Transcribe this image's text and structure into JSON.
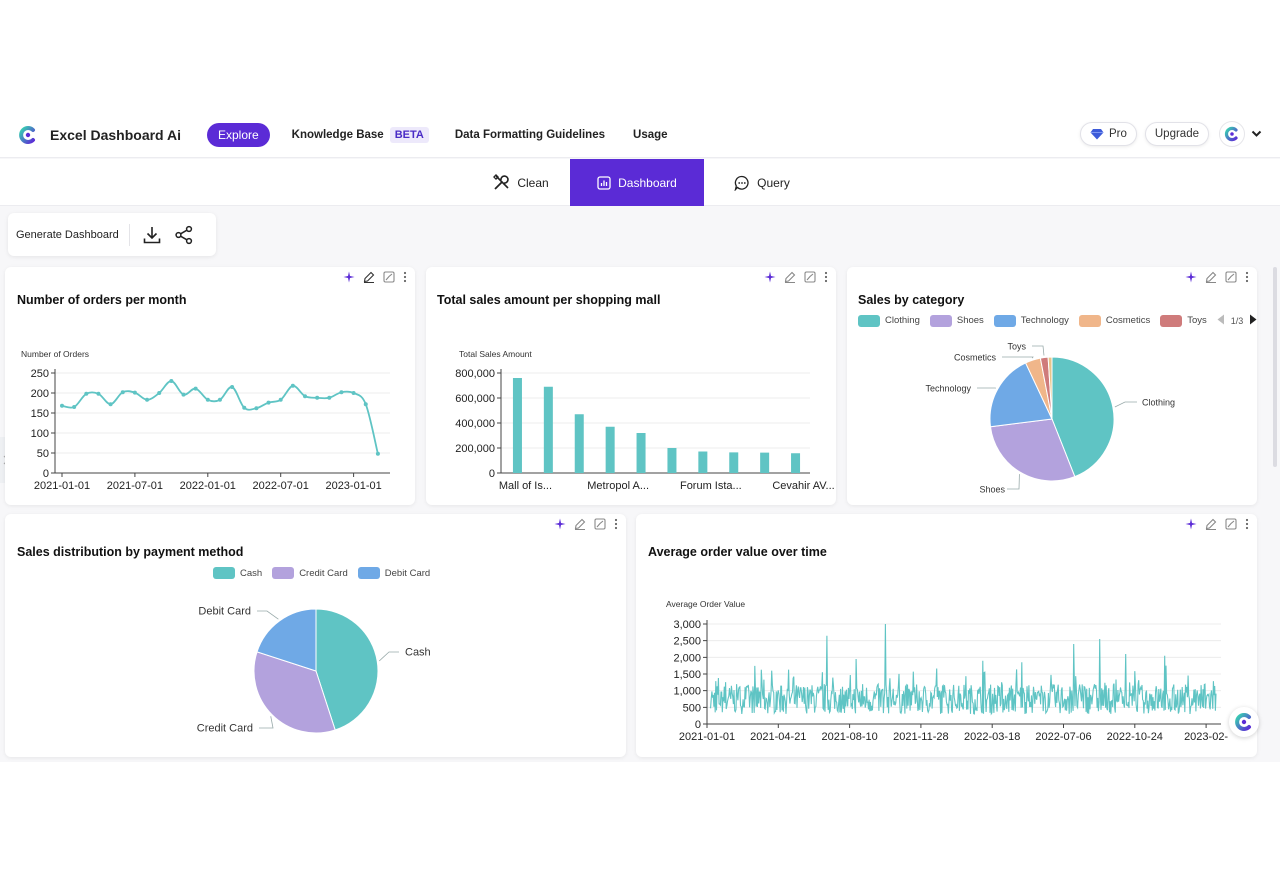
{
  "app": {
    "name": "Excel Dashboard Ai",
    "colors": {
      "accent": "#5b2bd6",
      "teal": "#5fc4c4",
      "purple": "#b3a2dd",
      "blue": "#6fa9e6",
      "orange": "#f0b68a",
      "red": "#cf7b7b"
    }
  },
  "nav": {
    "explore": "Explore",
    "knowledge_base": "Knowledge Base",
    "beta": "BETA",
    "guidelines": "Data Formatting Guidelines",
    "usage": "Usage",
    "pro": "Pro",
    "upgrade": "Upgrade"
  },
  "tabs": [
    {
      "label": "Clean",
      "icon": "tools-icon"
    },
    {
      "label": "Dashboard",
      "icon": "chart-icon",
      "active": true
    },
    {
      "label": "Query",
      "icon": "chat-icon"
    }
  ],
  "toolbar": {
    "generate": "Generate Dashboard"
  },
  "chart_data": [
    {
      "type": "line",
      "title": "Number of orders per month",
      "ylabel": "Number of Orders",
      "ylim": [
        0,
        250
      ],
      "yticks": [
        0,
        50,
        100,
        150,
        200,
        250
      ],
      "xticks": [
        "2021-01-01",
        "2021-07-01",
        "2022-01-01",
        "2022-07-01",
        "2023-01-01"
      ],
      "values": [
        168,
        165,
        198,
        198,
        172,
        202,
        201,
        183,
        200,
        230,
        196,
        211,
        183,
        183,
        215,
        163,
        162,
        176,
        183,
        218,
        192,
        188,
        188,
        202,
        200,
        172,
        48
      ]
    },
    {
      "type": "bar",
      "title": "Total sales amount per shopping mall",
      "ylabel": "Total Sales Amount",
      "ylim": [
        0,
        800000
      ],
      "yticks": [
        "0",
        "200,000",
        "400,000",
        "600,000",
        "800,000"
      ],
      "xticks": [
        "Mall of Is...",
        "Metropol A...",
        "Forum Ista...",
        "Cevahir AV..."
      ],
      "values": [
        760000,
        690000,
        470000,
        370000,
        320000,
        200000,
        172000,
        165000,
        163000,
        158000
      ]
    },
    {
      "type": "pie",
      "title": "Sales by category",
      "page": "1/3",
      "series": [
        {
          "name": "Clothing",
          "value": 44
        },
        {
          "name": "Shoes",
          "value": 29
        },
        {
          "name": "Technology",
          "value": 20
        },
        {
          "name": "Cosmetics",
          "value": 4
        },
        {
          "name": "Toys",
          "value": 2
        },
        {
          "name": "",
          "value": 1
        }
      ]
    },
    {
      "type": "pie",
      "title": "Sales distribution by payment method",
      "series": [
        {
          "name": "Cash",
          "value": 45
        },
        {
          "name": "Credit Card",
          "value": 35
        },
        {
          "name": "Debit Card",
          "value": 20
        }
      ]
    },
    {
      "type": "line",
      "title": "Average order value over time",
      "ylabel": "Average Order Value",
      "ylim": [
        0,
        3000
      ],
      "yticks": [
        "0",
        "500",
        "1,000",
        "1,500",
        "2,000",
        "2,500",
        "3,000"
      ],
      "xticks": [
        "2021-01-01",
        "2021-04-21",
        "2021-08-10",
        "2021-11-28",
        "2022-03-18",
        "2022-07-06",
        "2022-10-24",
        "2023-02-"
      ]
    }
  ]
}
